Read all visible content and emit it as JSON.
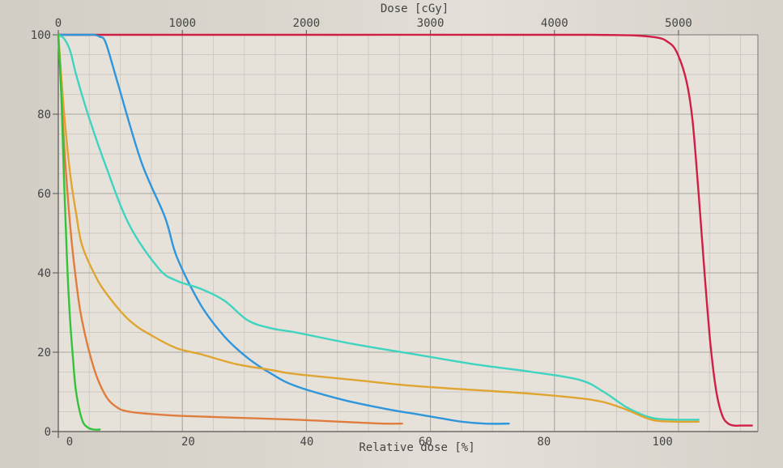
{
  "chart_data": {
    "type": "line",
    "title": "",
    "xlabel_top": "Dose [cGy]",
    "xlabel_bottom": "Relative dose [%]",
    "ylabel": "",
    "ylim": [
      0,
      100
    ],
    "xlim_relative": [
      0,
      118
    ],
    "xlim_dose": [
      0,
      5640
    ],
    "grid": true,
    "legend": "none",
    "top_ticks": [
      "0",
      "1000",
      "2000",
      "3000",
      "4000",
      "5000"
    ],
    "top_tick_values": [
      0,
      1000,
      2000,
      3000,
      4000,
      5000
    ],
    "bottom_ticks": [
      "0",
      "20",
      "40",
      "60",
      "80",
      "100"
    ],
    "bottom_tick_values": [
      0,
      20,
      40,
      60,
      80,
      100
    ],
    "y_ticks": [
      "0",
      "20",
      "40",
      "60",
      "80",
      "100"
    ],
    "y_tick_values": [
      0,
      20,
      40,
      60,
      80,
      100
    ],
    "series": [
      {
        "color": "#d01f45",
        "x": [
          0,
          50,
          90,
          100,
          103,
          104.5,
          106,
          107,
          108,
          109,
          110,
          111,
          112,
          113,
          114,
          115,
          116,
          117
        ],
        "y": [
          100,
          100,
          100,
          99.5,
          98,
          95,
          88,
          78,
          60,
          40,
          22,
          10,
          4,
          2,
          1.5,
          1.5,
          1.5,
          1.5
        ]
      },
      {
        "color": "#2f96dc",
        "x": [
          0,
          5,
          6,
          7,
          8,
          10,
          14,
          18,
          20,
          24,
          28,
          32,
          36,
          40,
          48,
          56,
          60,
          64,
          68,
          72,
          76
        ],
        "y": [
          100,
          100,
          100,
          99.5,
          98,
          88,
          68,
          54,
          44,
          32,
          24,
          18.5,
          14.5,
          11.5,
          8,
          5.5,
          4.5,
          3.5,
          2.5,
          2,
          2
        ]
      },
      {
        "color": "#3ed4c0",
        "x": [
          0,
          1,
          2,
          3,
          5,
          8,
          12,
          17,
          20,
          24,
          28,
          32,
          36,
          40,
          50,
          60,
          70,
          80,
          88,
          92,
          96,
          100,
          104,
          108
        ],
        "y": [
          100,
          99,
          96,
          90,
          80,
          67,
          52,
          41,
          38,
          36,
          33,
          28,
          26,
          25,
          22,
          19.5,
          17,
          15,
          13,
          10,
          6,
          3.5,
          3,
          3
        ]
      },
      {
        "color": "#e0a531",
        "x": [
          0,
          1,
          2,
          3,
          4,
          6,
          8,
          12,
          16,
          20,
          24,
          30,
          36,
          40,
          50,
          60,
          70,
          80,
          90,
          95,
          100,
          104,
          108
        ],
        "y": [
          100,
          80,
          65,
          55,
          47,
          40,
          35,
          28,
          24,
          21,
          19.5,
          17,
          15.5,
          14.5,
          13,
          11.5,
          10.5,
          9.5,
          8,
          6,
          3,
          2.5,
          2.5
        ]
      },
      {
        "color": "#e07d3c",
        "x": [
          0,
          1,
          2,
          3,
          4,
          6,
          8,
          10,
          12,
          15,
          20,
          30,
          40,
          50,
          55,
          58
        ],
        "y": [
          100,
          72,
          52,
          38,
          28,
          16,
          9,
          6,
          5,
          4.5,
          4,
          3.5,
          3,
          2.3,
          2,
          2
        ]
      },
      {
        "color": "#34c23a",
        "x": [
          0,
          0.5,
          1,
          1.5,
          2,
          2.5,
          3,
          4,
          5,
          6,
          7
        ],
        "y": [
          100,
          85,
          62,
          42,
          28,
          18,
          10,
          3,
          1,
          0.5,
          0.5
        ]
      }
    ]
  }
}
